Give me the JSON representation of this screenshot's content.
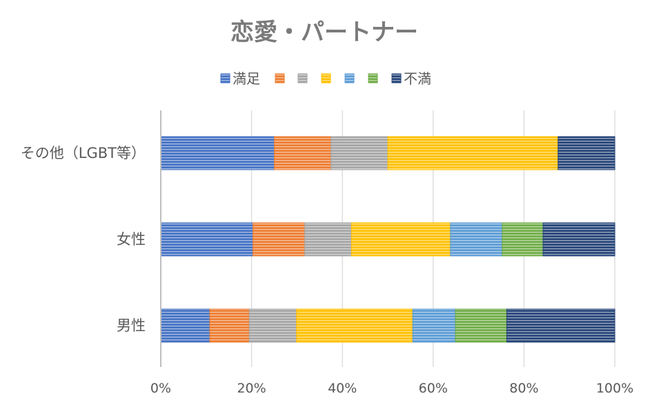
{
  "chart_data": {
    "type": "bar",
    "orientation": "horizontal",
    "stacked": "percent",
    "title": "恋愛・パートナー",
    "categories": [
      "その他（LGBT等）",
      "女性",
      "男性"
    ],
    "series": [
      {
        "name": "満足",
        "color": "#4472C4",
        "values": [
          25.0,
          20.3,
          10.8
        ]
      },
      {
        "name": "",
        "color": "#ED7D31",
        "values": [
          12.5,
          11.4,
          8.7
        ]
      },
      {
        "name": "",
        "color": "#A5A5A5",
        "values": [
          12.5,
          10.3,
          10.4
        ]
      },
      {
        "name": "",
        "color": "#FFC000",
        "values": [
          37.5,
          21.8,
          25.6
        ]
      },
      {
        "name": "",
        "color": "#5B9BD5",
        "values": [
          0.0,
          11.4,
          9.4
        ]
      },
      {
        "name": "",
        "color": "#70AD47",
        "values": [
          0.0,
          9.0,
          11.3
        ]
      },
      {
        "name": "不満",
        "color": "#264478",
        "values": [
          12.5,
          15.8,
          23.8
        ]
      }
    ],
    "xaxis": {
      "min": 0,
      "max": 100,
      "ticks": [
        0,
        20,
        40,
        60,
        80,
        100
      ],
      "tick_labels": [
        "0%",
        "20%",
        "40%",
        "60%",
        "80%",
        "100%"
      ]
    },
    "grid": true,
    "legend": "top",
    "pattern": "horizontal-stripes"
  }
}
